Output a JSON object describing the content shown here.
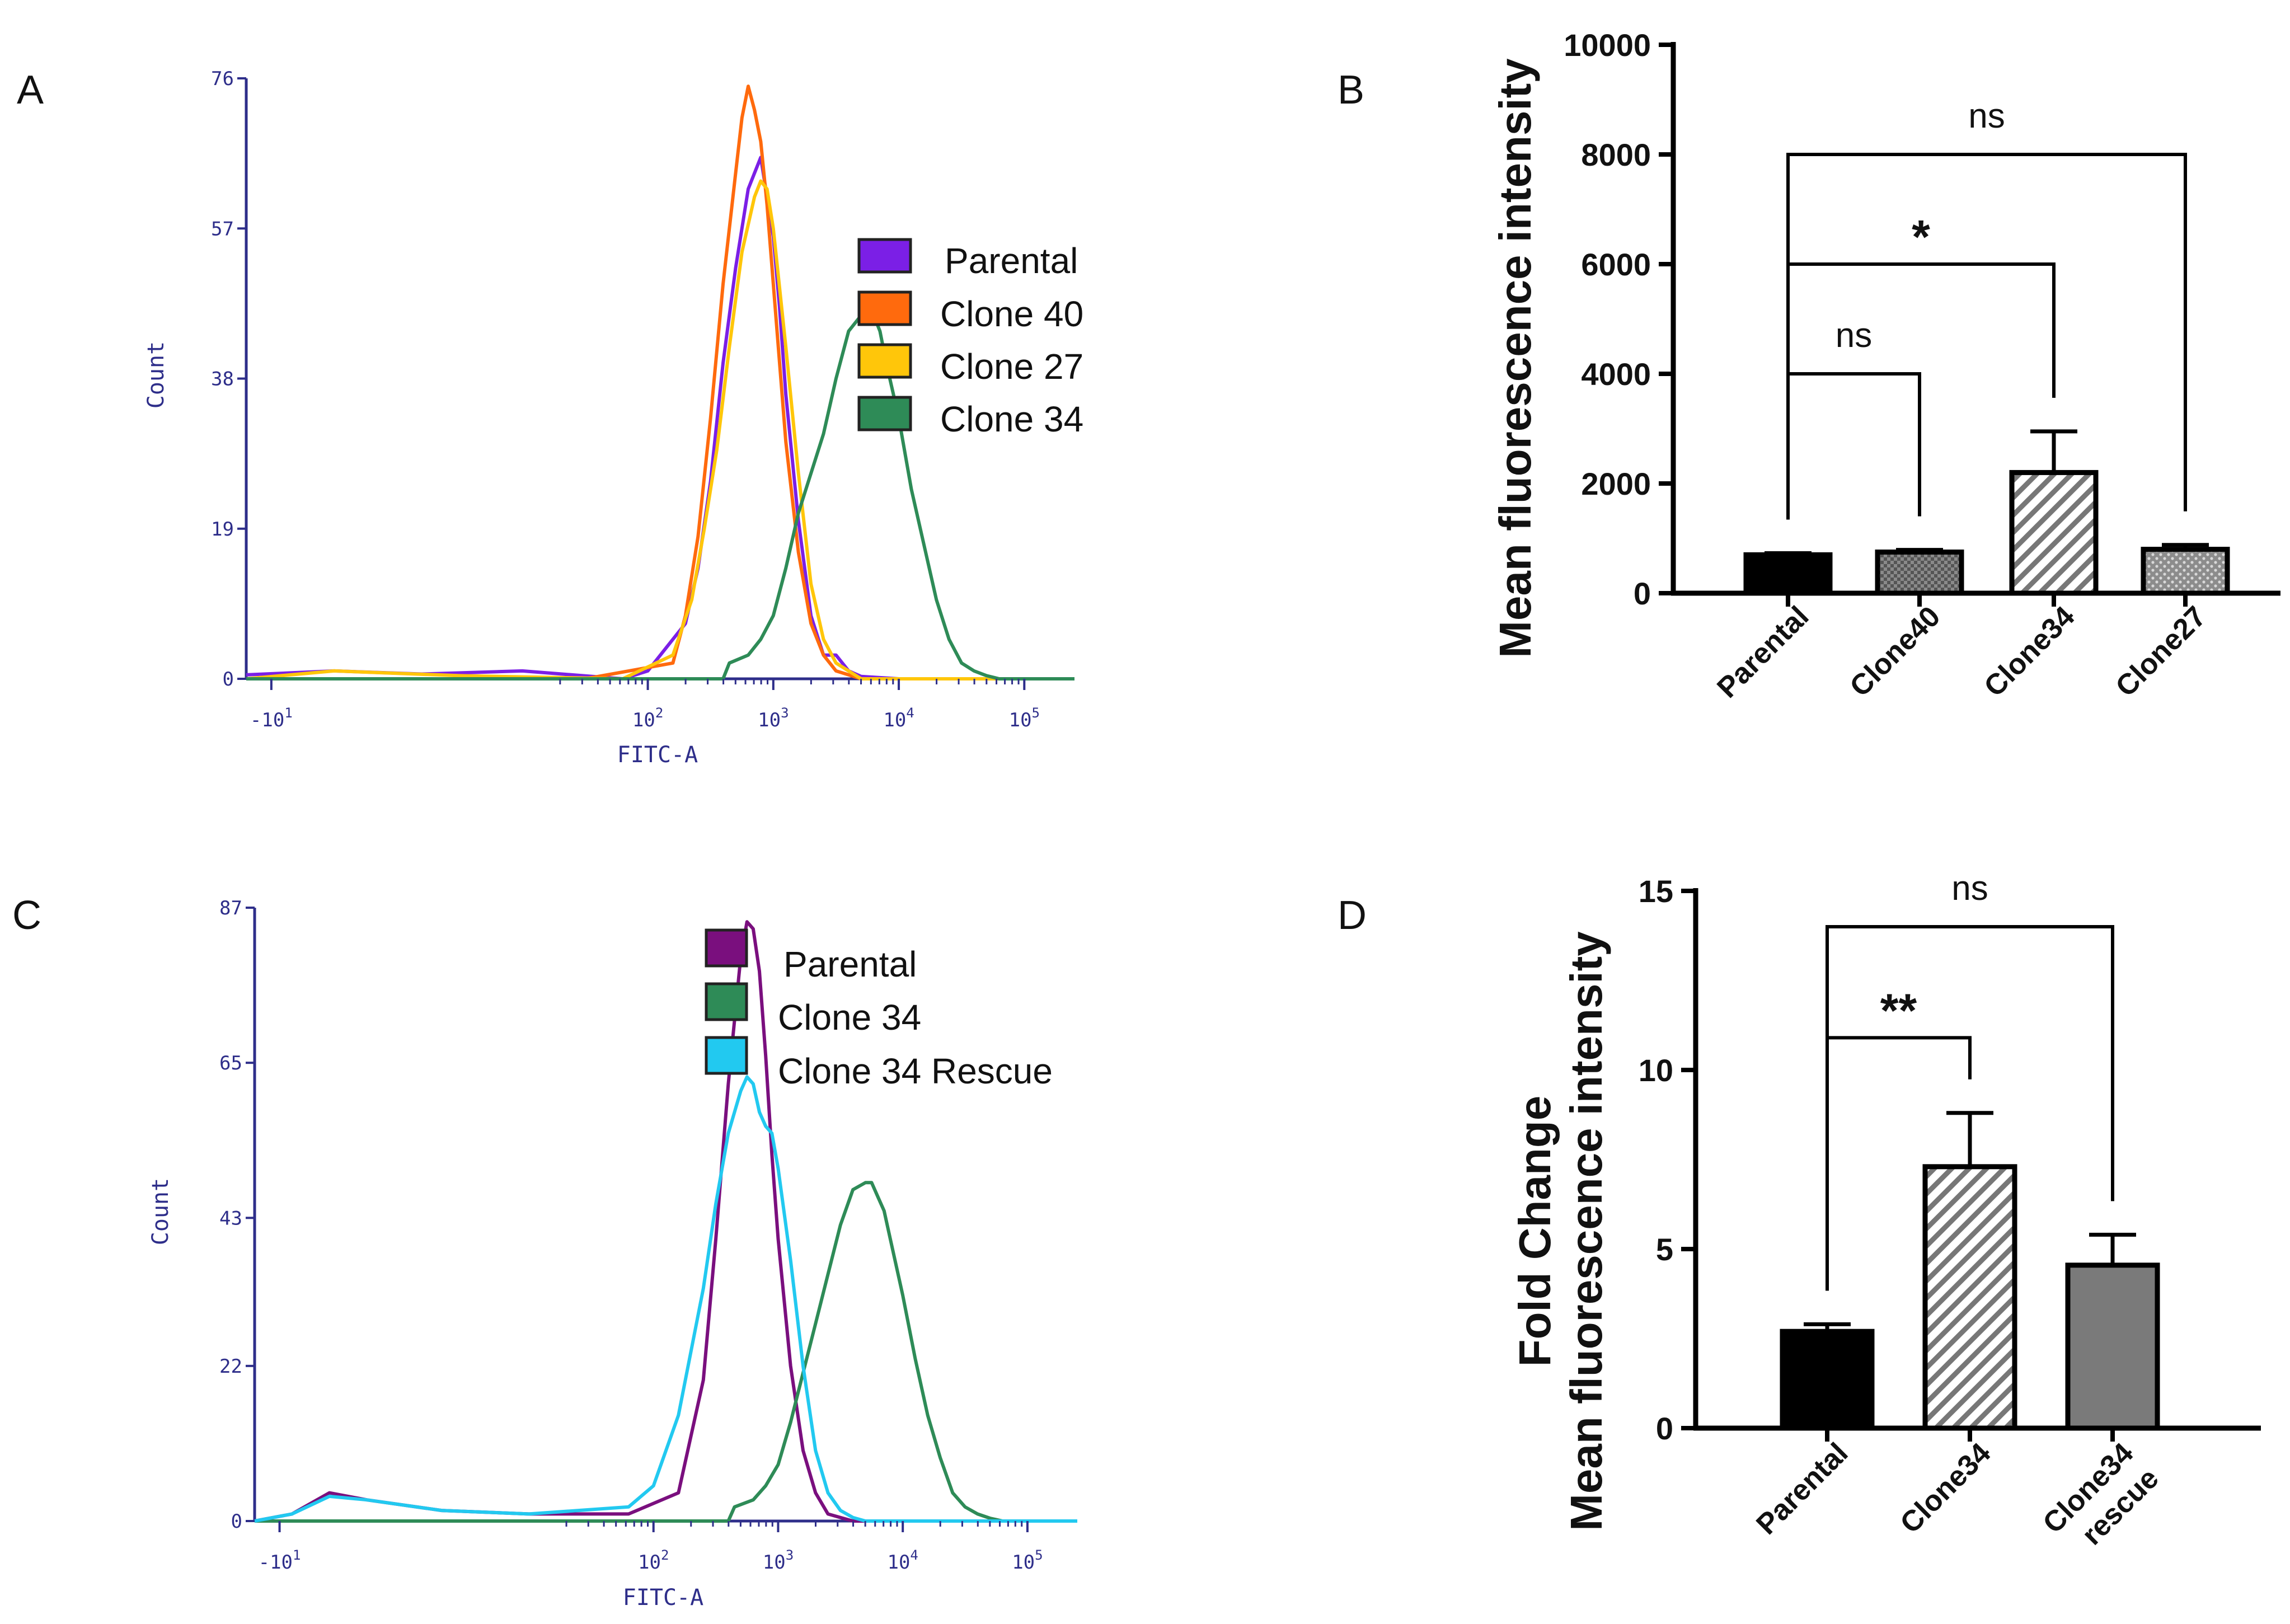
{
  "colors": {
    "A_parental": "#7b1fe6",
    "A_clone40": "#ff6a0d",
    "A_clone27": "#ffc60a",
    "A_clone34": "#2e8b57",
    "C_parental": "#7a0f7e",
    "C_clone34": "#2e8b57",
    "C_rescue": "#22c9f0",
    "flow_axis": "#2e2e8a",
    "bar_dark": "#000000",
    "bar_gray": "#7a7a7a"
  },
  "chart_data": [
    {
      "id": "A",
      "panel_label": "A",
      "type": "line",
      "title": "",
      "xlabel": "FITC-A",
      "ylabel": "Count",
      "x_scale": "log (biexponential)",
      "xlim_log10": [
        -1.2,
        5.4
      ],
      "ylim": [
        0,
        76
      ],
      "yticks": [
        "0",
        "19",
        "38",
        "57",
        "76"
      ],
      "xticks": [
        {
          "pos": -1,
          "base": "-10",
          "exp": "1"
        },
        {
          "pos": 2,
          "base": "10",
          "exp": "2"
        },
        {
          "pos": 3,
          "base": "10",
          "exp": "3"
        },
        {
          "pos": 4,
          "base": "10",
          "exp": "4"
        },
        {
          "pos": 5,
          "base": "10",
          "exp": "5"
        }
      ],
      "legend": [
        "Parental",
        "Clone 40",
        "Clone 27",
        "Clone 34"
      ],
      "series": [
        {
          "name": "Parental",
          "color_key": "A_parental",
          "x": [
            -1.2,
            -0.5,
            0.2,
            1.0,
            1.8,
            2.0,
            2.15,
            2.3,
            2.4,
            2.5,
            2.6,
            2.7,
            2.8,
            2.85,
            2.9,
            2.95,
            3.0,
            3.05,
            3.1,
            3.2,
            3.3,
            3.4,
            3.5,
            3.6,
            3.7,
            4.0,
            5.4
          ],
          "y": [
            0.5,
            1,
            0.6,
            1,
            0,
            1,
            4,
            7,
            14,
            25,
            40,
            52,
            62,
            64,
            66,
            61,
            56,
            47,
            36,
            20,
            8,
            3,
            3,
            1,
            0.3,
            0,
            0
          ]
        },
        {
          "name": "Clone 40",
          "color_key": "A_clone40",
          "x": [
            -1.2,
            1.5,
            2.2,
            2.3,
            2.4,
            2.5,
            2.6,
            2.7,
            2.75,
            2.8,
            2.85,
            2.9,
            2.95,
            3.0,
            3.05,
            3.1,
            3.2,
            3.3,
            3.4,
            3.5,
            3.6,
            3.7,
            5.4
          ],
          "y": [
            0,
            0,
            2,
            8,
            18,
            33,
            50,
            64,
            71,
            75,
            72,
            68,
            60,
            50,
            40,
            30,
            16,
            7,
            3,
            1,
            0.5,
            0,
            0
          ]
        },
        {
          "name": "Clone 27",
          "color_key": "A_clone27",
          "x": [
            -1.2,
            -0.5,
            0.5,
            1.8,
            2.2,
            2.35,
            2.45,
            2.55,
            2.65,
            2.75,
            2.85,
            2.9,
            2.95,
            3.0,
            3.1,
            3.2,
            3.3,
            3.4,
            3.5,
            3.6,
            3.7,
            5.4
          ],
          "y": [
            0,
            1,
            0.4,
            0,
            3,
            10,
            19,
            29,
            42,
            54,
            61,
            63,
            62,
            57,
            42,
            26,
            12,
            5,
            2,
            1,
            0,
            0
          ]
        },
        {
          "name": "Clone 34",
          "color_key": "A_clone34",
          "x": [
            -1.2,
            2.6,
            2.65,
            2.8,
            2.9,
            3.0,
            3.1,
            3.2,
            3.3,
            3.4,
            3.5,
            3.6,
            3.7,
            3.75,
            3.8,
            3.85,
            3.9,
            4.0,
            4.1,
            4.2,
            4.3,
            4.4,
            4.5,
            4.6,
            4.7,
            4.8,
            5.4
          ],
          "y": [
            0,
            0,
            2,
            3,
            5,
            8,
            14,
            21,
            26,
            31,
            38,
            44,
            46,
            47,
            46,
            44,
            40,
            33,
            24,
            17,
            10,
            5,
            2,
            1,
            0.4,
            0,
            0
          ]
        }
      ]
    },
    {
      "id": "B",
      "panel_label": "B",
      "type": "bar",
      "title": "",
      "xlabel": "",
      "ylabel": "Mean fluorescence intensity",
      "ylim": [
        0,
        10000
      ],
      "yticks": [
        0,
        2000,
        4000,
        6000,
        8000,
        10000
      ],
      "categories": [
        "Parental",
        "Clone40",
        "Clone34",
        "Clone27"
      ],
      "values": [
        700,
        750,
        2200,
        800
      ],
      "errors": [
        30,
        40,
        750,
        80
      ],
      "patterns": [
        "solid",
        "crosshatch",
        "hatch",
        "dots"
      ],
      "significance": [
        {
          "from": 0,
          "to": 1,
          "label": "ns",
          "y": 4000
        },
        {
          "from": 0,
          "to": 2,
          "label": "*",
          "y": 6000
        },
        {
          "from": 0,
          "to": 3,
          "label": "ns",
          "y": 8000
        }
      ]
    },
    {
      "id": "C",
      "panel_label": "C",
      "type": "line",
      "title": "",
      "xlabel": "FITC-A",
      "ylabel": "Count",
      "x_scale": "log (biexponential)",
      "xlim_log10": [
        -1.2,
        5.4
      ],
      "ylim": [
        0,
        87
      ],
      "yticks": [
        "0",
        "22",
        "43",
        "65",
        "87"
      ],
      "xticks": [
        {
          "pos": -1,
          "base": "-10",
          "exp": "1"
        },
        {
          "pos": 2,
          "base": "10",
          "exp": "2"
        },
        {
          "pos": 3,
          "base": "10",
          "exp": "3"
        },
        {
          "pos": 4,
          "base": "10",
          "exp": "4"
        },
        {
          "pos": 5,
          "base": "10",
          "exp": "5"
        }
      ],
      "legend": [
        "Parental",
        "Clone 34",
        "Clone 34 Rescue"
      ],
      "series": [
        {
          "name": "Parental",
          "color_key": "C_parental",
          "x": [
            -1.2,
            -0.9,
            -0.6,
            -0.3,
            0.3,
            1.0,
            1.8,
            2.2,
            2.4,
            2.5,
            2.6,
            2.7,
            2.75,
            2.8,
            2.85,
            2.9,
            2.95,
            3.0,
            3.1,
            3.2,
            3.3,
            3.4,
            3.5,
            3.6,
            5.4
          ],
          "y": [
            0,
            1,
            4,
            3,
            1.5,
            1,
            1,
            4,
            20,
            40,
            62,
            80,
            85,
            84,
            78,
            66,
            52,
            40,
            22,
            10,
            4,
            1,
            0.5,
            0,
            0
          ]
        },
        {
          "name": "Clone 34",
          "color_key": "C_clone34",
          "x": [
            -1.2,
            2.6,
            2.65,
            2.8,
            2.9,
            3.0,
            3.1,
            3.2,
            3.3,
            3.4,
            3.5,
            3.6,
            3.7,
            3.75,
            3.8,
            3.85,
            3.9,
            4.0,
            4.1,
            4.2,
            4.3,
            4.4,
            4.5,
            4.6,
            4.7,
            4.8,
            5.4
          ],
          "y": [
            0,
            0,
            2,
            3,
            5,
            8,
            14,
            21,
            28,
            35,
            42,
            47,
            48,
            48,
            46,
            44,
            40,
            32,
            23,
            15,
            9,
            4,
            2,
            1,
            0.4,
            0,
            0
          ]
        },
        {
          "name": "Clone 34 Rescue",
          "color_key": "C_rescue",
          "x": [
            -1.2,
            -0.9,
            -0.6,
            -0.3,
            0.3,
            1.0,
            1.8,
            2.0,
            2.2,
            2.4,
            2.5,
            2.6,
            2.7,
            2.75,
            2.8,
            2.85,
            2.9,
            2.95,
            3.0,
            3.1,
            3.2,
            3.3,
            3.4,
            3.5,
            3.6,
            3.7,
            5.4
          ],
          "y": [
            0,
            1,
            3.5,
            3,
            1.5,
            1,
            2,
            5,
            15,
            33,
            45,
            55,
            61,
            63,
            62,
            58,
            56,
            55,
            50,
            37,
            22,
            10,
            4,
            1.5,
            0.5,
            0,
            0
          ]
        }
      ]
    },
    {
      "id": "D",
      "panel_label": "D",
      "type": "bar",
      "title": "",
      "xlabel": "",
      "ylabel": "Fold Change",
      "ylabel2": "Mean fluorescence intensity",
      "ylim": [
        0,
        15
      ],
      "yticks": [
        0,
        5,
        10,
        15
      ],
      "categories": [
        "Parental",
        "Clone34",
        "Clone34"
      ],
      "category_line2": [
        "",
        "",
        "rescue"
      ],
      "values": [
        2.7,
        7.3,
        4.55
      ],
      "errors": [
        0.2,
        1.5,
        0.85
      ],
      "patterns": [
        "solid",
        "hatch",
        "gray"
      ],
      "significance": [
        {
          "from": 0,
          "to": 1,
          "label": "**",
          "y": 10.9
        },
        {
          "from": 0,
          "to": 2,
          "label": "ns",
          "y": 14
        }
      ]
    }
  ]
}
